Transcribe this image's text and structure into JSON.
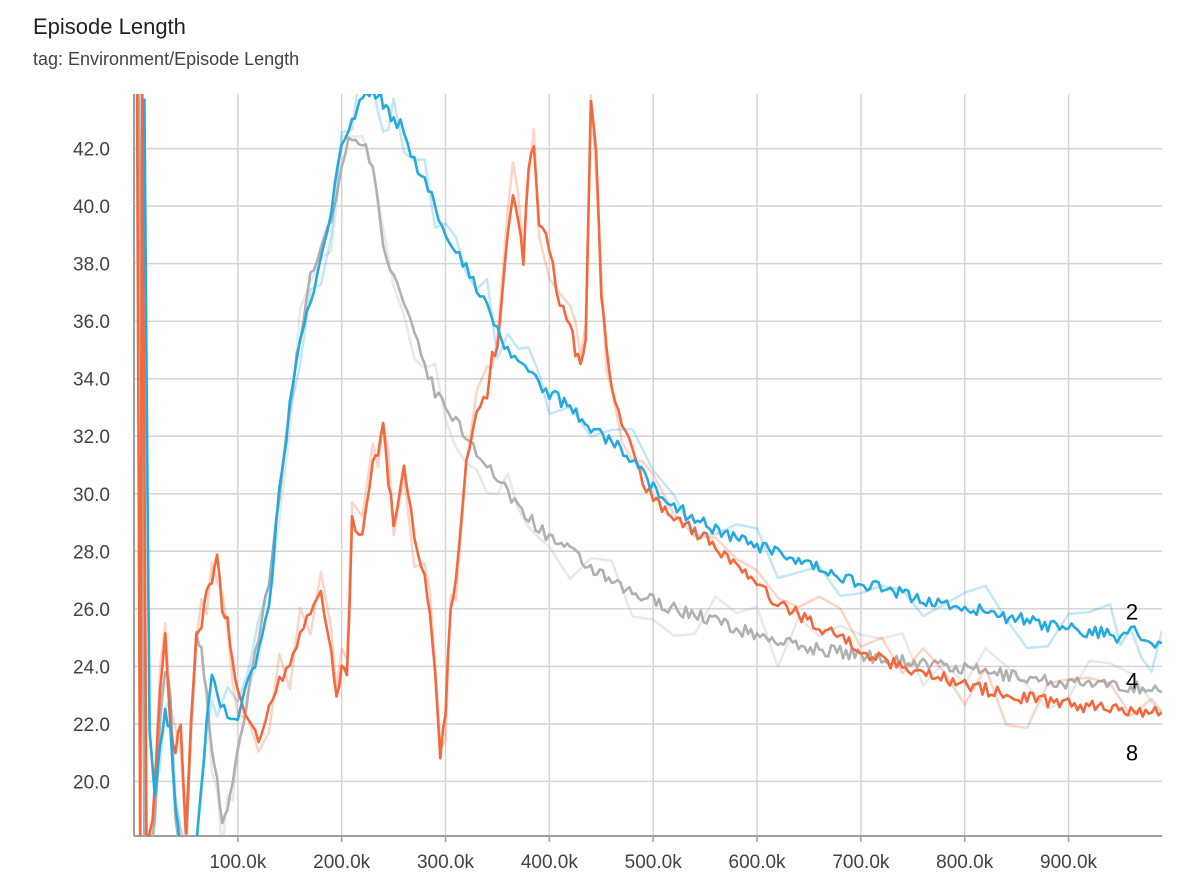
{
  "header": {
    "title": "Episode Length",
    "subtitle": "tag: Environment/Episode Length"
  },
  "chart_data": {
    "type": "line",
    "title": "Episode Length",
    "subtitle": "tag: Environment/Episode Length",
    "xlabel": "",
    "ylabel": "",
    "xlim": [
      0,
      990000
    ],
    "ylim": [
      18.1,
      43.9
    ],
    "grid": true,
    "x_ticks": [
      100000,
      200000,
      300000,
      400000,
      500000,
      600000,
      700000,
      800000,
      900000
    ],
    "x_tick_labels": [
      "100.0k",
      "200.0k",
      "300.0k",
      "400.0k",
      "500.0k",
      "600.0k",
      "700.0k",
      "800.0k",
      "900.0k"
    ],
    "y_ticks": [
      20,
      22,
      24,
      26,
      28,
      30,
      32,
      34,
      36,
      38,
      40,
      42
    ],
    "y_tick_labels": [
      "20.0",
      "22.0",
      "24.0",
      "26.0",
      "28.0",
      "30.0",
      "32.0",
      "34.0",
      "36.0",
      "38.0",
      "40.0",
      "42.0"
    ],
    "series": [
      {
        "name": "2",
        "color": "#26a9e0",
        "x": [
          10000,
          13000,
          15000,
          20000,
          25000,
          30000,
          35000,
          40000,
          45000,
          50000,
          55000,
          60000,
          65000,
          70000,
          75000,
          80000,
          90000,
          100000,
          110000,
          120000,
          130000,
          140000,
          150000,
          160000,
          170000,
          180000,
          190000,
          200000,
          210000,
          215000,
          220000,
          230000,
          235000,
          240000,
          245000,
          250000,
          260000,
          270000,
          280000,
          290000,
          300000,
          310000,
          320000,
          330000,
          340000,
          350000,
          360000,
          370000,
          380000,
          390000,
          400000,
          420000,
          440000,
          460000,
          480000,
          500000,
          520000,
          540000,
          560000,
          580000,
          600000,
          620000,
          640000,
          660000,
          680000,
          700000,
          720000,
          740000,
          760000,
          780000,
          800000,
          820000,
          840000,
          860000,
          880000,
          900000,
          920000,
          940000,
          950000,
          960000,
          970000,
          980000,
          990000
        ],
        "y": [
          43.9,
          30.0,
          22.0,
          19.5,
          21.0,
          22.3,
          22.0,
          19.0,
          17.5,
          17.0,
          17.5,
          18.0,
          20.0,
          22.0,
          23.5,
          23.0,
          22.3,
          22.2,
          23.5,
          24.5,
          26.0,
          30.0,
          33.0,
          35.5,
          36.5,
          38.0,
          40.0,
          42.0,
          43.0,
          43.5,
          43.7,
          43.9,
          43.9,
          43.6,
          43.2,
          43.0,
          42.7,
          41.5,
          41.0,
          40.0,
          39.0,
          38.4,
          37.8,
          37.2,
          36.6,
          35.6,
          35.0,
          34.8,
          34.2,
          33.8,
          33.5,
          33.0,
          32.3,
          31.8,
          31.2,
          30.2,
          29.6,
          29.1,
          28.8,
          28.4,
          28.2,
          27.9,
          27.6,
          27.4,
          27.1,
          26.9,
          26.7,
          26.5,
          26.3,
          26.2,
          26.0,
          25.9,
          25.7,
          25.6,
          25.4,
          25.3,
          25.2,
          25.1,
          25.0,
          25.3,
          25.0,
          24.9,
          24.8
        ]
      },
      {
        "name": "4",
        "color": "#b0b0b0",
        "x": [
          5000,
          10000,
          15000,
          20000,
          25000,
          30000,
          35000,
          40000,
          45000,
          50000,
          55000,
          60000,
          65000,
          70000,
          75000,
          80000,
          85000,
          90000,
          95000,
          100000,
          105000,
          110000,
          120000,
          130000,
          140000,
          150000,
          160000,
          170000,
          180000,
          190000,
          195000,
          200000,
          210000,
          220000,
          230000,
          240000,
          250000,
          260000,
          270000,
          280000,
          290000,
          300000,
          310000,
          320000,
          330000,
          340000,
          350000,
          360000,
          370000,
          380000,
          390000,
          400000,
          420000,
          440000,
          460000,
          480000,
          500000,
          520000,
          540000,
          560000,
          580000,
          600000,
          620000,
          640000,
          660000,
          680000,
          700000,
          720000,
          740000,
          760000,
          780000,
          800000,
          820000,
          840000,
          860000,
          880000,
          900000,
          920000,
          940000,
          960000,
          980000,
          990000
        ],
        "y": [
          43.9,
          18.0,
          17.5,
          18.5,
          22.0,
          24.0,
          23.0,
          18.5,
          17.5,
          17.5,
          22.0,
          25.0,
          24.5,
          23.0,
          21.0,
          20.0,
          18.5,
          19.0,
          20.0,
          21.0,
          22.0,
          23.0,
          25.0,
          27.0,
          30.0,
          33.0,
          35.5,
          37.5,
          38.5,
          39.5,
          40.5,
          41.5,
          42.5,
          42.2,
          41.5,
          38.5,
          37.5,
          36.5,
          35.5,
          34.5,
          33.5,
          33.0,
          32.5,
          32.0,
          31.5,
          31.0,
          30.5,
          30.0,
          29.6,
          29.2,
          28.8,
          28.5,
          28.0,
          27.4,
          26.9,
          26.5,
          26.3,
          26.0,
          25.8,
          25.6,
          25.3,
          25.1,
          24.9,
          24.7,
          24.6,
          24.5,
          24.4,
          24.3,
          24.2,
          24.1,
          24.0,
          23.9,
          23.8,
          23.7,
          23.6,
          23.5,
          23.4,
          23.4,
          23.3,
          23.3,
          23.2,
          23.1
        ]
      },
      {
        "name": "8",
        "color": "#f4683c",
        "x": [
          3000,
          6000,
          8000,
          12000,
          18000,
          25000,
          30000,
          35000,
          40000,
          45000,
          50000,
          55000,
          60000,
          65000,
          70000,
          75000,
          80000,
          85000,
          90000,
          95000,
          100000,
          110000,
          120000,
          130000,
          140000,
          150000,
          160000,
          170000,
          180000,
          190000,
          195000,
          200000,
          205000,
          210000,
          220000,
          230000,
          235000,
          240000,
          245000,
          250000,
          260000,
          270000,
          280000,
          285000,
          290000,
          295000,
          300000,
          305000,
          310000,
          320000,
          330000,
          340000,
          345000,
          350000,
          360000,
          365000,
          370000,
          375000,
          380000,
          385000,
          390000,
          400000,
          410000,
          420000,
          425000,
          430000,
          435000,
          440000,
          445000,
          450000,
          455000,
          460000,
          470000,
          480000,
          490000,
          500000,
          520000,
          540000,
          560000,
          580000,
          600000,
          620000,
          640000,
          660000,
          680000,
          700000,
          720000,
          740000,
          760000,
          780000,
          800000,
          820000,
          840000,
          860000,
          880000,
          900000,
          920000,
          940000,
          960000,
          980000,
          990000
        ],
        "y": [
          43.9,
          17.5,
          43.9,
          18.0,
          18.5,
          23.0,
          25.0,
          22.0,
          21.0,
          22.0,
          18.0,
          22.0,
          25.0,
          25.5,
          26.5,
          27.0,
          28.0,
          26.0,
          25.5,
          24.0,
          23.0,
          22.0,
          21.5,
          22.5,
          23.5,
          24.0,
          25.0,
          26.0,
          26.5,
          24.5,
          23.0,
          24.0,
          23.5,
          29.0,
          28.5,
          31.0,
          31.5,
          32.5,
          30.5,
          29.0,
          31.0,
          28.5,
          27.0,
          26.0,
          24.0,
          21.0,
          22.5,
          26.0,
          27.0,
          31.0,
          33.0,
          33.5,
          35.0,
          35.0,
          39.0,
          40.5,
          39.5,
          38.0,
          41.5,
          42.0,
          39.5,
          38.5,
          36.5,
          36.0,
          35.0,
          34.5,
          35.5,
          43.5,
          42.0,
          37.0,
          35.0,
          33.5,
          32.5,
          31.5,
          30.5,
          29.8,
          29.2,
          28.7,
          28.2,
          27.5,
          26.8,
          26.2,
          25.8,
          25.4,
          25.0,
          24.6,
          24.2,
          24.0,
          23.8,
          23.6,
          23.4,
          23.2,
          23.0,
          22.9,
          22.8,
          22.7,
          22.6,
          22.6,
          22.5,
          22.4,
          22.4
        ]
      }
    ],
    "end_labels": [
      {
        "series": "2",
        "text": "2",
        "y": 25.9
      },
      {
        "series": "4",
        "text": "4",
        "y": 23.5
      },
      {
        "series": "8",
        "text": "8",
        "y": 21.0
      }
    ]
  }
}
